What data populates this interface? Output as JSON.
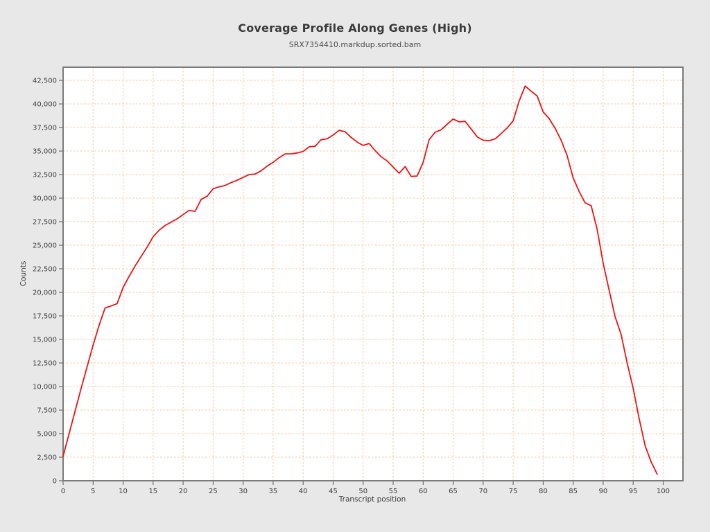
{
  "chart_data": {
    "type": "line",
    "title": "Coverage Profile Along Genes (High)",
    "subtitle": "SRX7354410.markdup.sorted.bam",
    "xlabel": "Transcript position",
    "ylabel": "Counts",
    "xlim": [
      0,
      103.3
    ],
    "ylim": [
      0,
      43900
    ],
    "x_ticks": [
      0,
      5,
      10,
      15,
      20,
      25,
      30,
      35,
      40,
      45,
      50,
      55,
      60,
      65,
      70,
      75,
      80,
      85,
      90,
      95,
      100
    ],
    "y_ticks": [
      0,
      2500,
      5000,
      7500,
      10000,
      12500,
      15000,
      17500,
      20000,
      22500,
      25000,
      27500,
      30000,
      32500,
      35000,
      37500,
      40000,
      42500
    ],
    "grid": true,
    "legend": "none",
    "series": [
      {
        "name": "coverage",
        "color": "#ee1111",
        "x_min": 0,
        "x_step": 1,
        "values": [
          2600,
          5000,
          7400,
          9800,
          12100,
          14400,
          16500,
          18350,
          18550,
          18800,
          20500,
          21700,
          22800,
          23800,
          24800,
          25900,
          26600,
          27100,
          27450,
          27800,
          28250,
          28700,
          28600,
          29870,
          30200,
          31000,
          31200,
          31350,
          31650,
          31900,
          32200,
          32500,
          32550,
          32900,
          33400,
          33800,
          34300,
          34700,
          34700,
          34800,
          34950,
          35450,
          35500,
          36200,
          36300,
          36700,
          37200,
          37050,
          36450,
          35950,
          35600,
          35800,
          35050,
          34400,
          33950,
          33300,
          32650,
          33350,
          32300,
          32350,
          33800,
          36200,
          37000,
          37250,
          37850,
          38400,
          38100,
          38150,
          37350,
          36500,
          36150,
          36100,
          36300,
          36850,
          37450,
          38200,
          40300,
          41900,
          41350,
          40850,
          39150,
          38450,
          37400,
          36150,
          34500,
          32150,
          30700,
          29500,
          29200,
          26700,
          23100,
          20200,
          17400,
          15500,
          12500,
          9800,
          6600,
          3700,
          2000,
          700
        ]
      }
    ],
    "colors": {
      "background": "#e8e8e8",
      "plot_background": "#ffffff",
      "grid": "#f2c7a0",
      "frame": "#7a7a7a",
      "tick_text": "#3c3c3c"
    }
  }
}
